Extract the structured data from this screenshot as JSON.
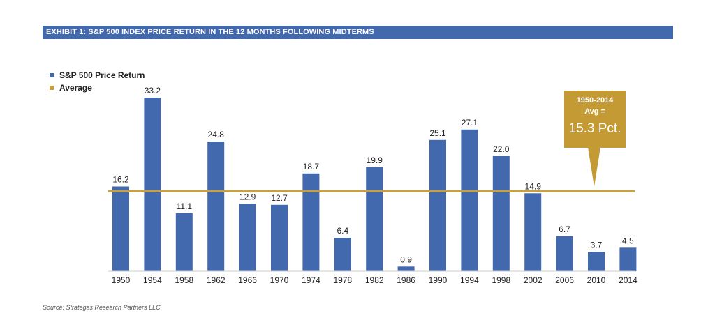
{
  "header": {
    "title": "EXHIBIT 1:  S&P 500 INDEX PRICE RETURN IN THE 12 MONTHS FOLLOWING MIDTERMS"
  },
  "legend": [
    {
      "label": "S&P 500 Price Return",
      "color": "#4268ad"
    },
    {
      "label": "Average",
      "color": "#c9a03a"
    }
  ],
  "callout": {
    "line1": "1950-2014",
    "line2": "Avg =",
    "line3": "15.3 Pct.",
    "color": "#c49a35"
  },
  "source": "Source: Strategas Research Partners LLC",
  "chart_data": {
    "type": "bar",
    "title": "EXHIBIT 1:  S&P 500 INDEX PRICE RETURN IN THE 12 MONTHS FOLLOWING MIDTERMS",
    "categories": [
      "1950",
      "1954",
      "1958",
      "1962",
      "1966",
      "1970",
      "1974",
      "1978",
      "1982",
      "1986",
      "1990",
      "1994",
      "1998",
      "2002",
      "2006",
      "2010",
      "2014"
    ],
    "series": [
      {
        "name": "S&P 500 Price Return",
        "values": [
          16.2,
          33.2,
          11.1,
          24.8,
          12.9,
          12.7,
          18.7,
          6.4,
          19.9,
          0.9,
          25.1,
          27.1,
          22.0,
          14.9,
          6.7,
          3.7,
          4.5
        ]
      }
    ],
    "data_labels": [
      "16.2",
      "33.2",
      "11.1",
      "24.8",
      "12.9",
      "12.7",
      "18.7",
      "6.4",
      "19.9",
      "0.9",
      "25.1",
      "27.1",
      "22.0",
      "14.9",
      "6.7",
      "3.7",
      "4.5"
    ],
    "average": {
      "name": "Average",
      "value": 15.3
    },
    "ylim": [
      0,
      34
    ],
    "grid": false,
    "legend_position": "top-left",
    "bar_color": "#4268ad",
    "average_color": "#c9a03a"
  }
}
